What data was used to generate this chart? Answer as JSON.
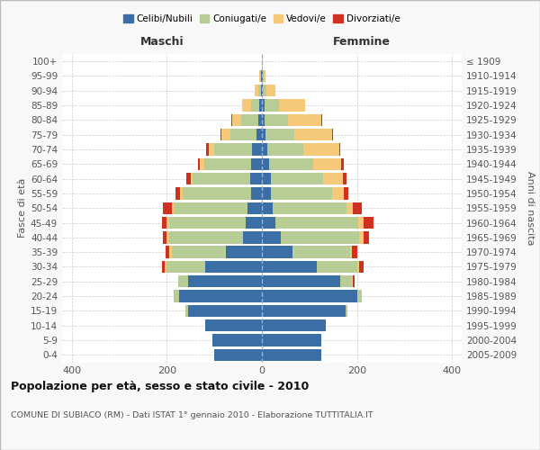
{
  "age_groups": [
    "0-4",
    "5-9",
    "10-14",
    "15-19",
    "20-24",
    "25-29",
    "30-34",
    "35-39",
    "40-44",
    "45-49",
    "50-54",
    "55-59",
    "60-64",
    "65-69",
    "70-74",
    "75-79",
    "80-84",
    "85-89",
    "90-94",
    "95-99",
    "100+"
  ],
  "birth_years": [
    "2005-2009",
    "2000-2004",
    "1995-1999",
    "1990-1994",
    "1985-1989",
    "1980-1984",
    "1975-1979",
    "1970-1974",
    "1965-1969",
    "1960-1964",
    "1955-1959",
    "1950-1954",
    "1945-1949",
    "1940-1944",
    "1935-1939",
    "1930-1934",
    "1925-1929",
    "1920-1924",
    "1915-1919",
    "1910-1914",
    "≤ 1909"
  ],
  "male": {
    "celibi": [
      100,
      105,
      120,
      155,
      175,
      155,
      120,
      75,
      40,
      35,
      30,
      22,
      25,
      22,
      20,
      12,
      8,
      5,
      2,
      1,
      0
    ],
    "coniugati": [
      0,
      0,
      0,
      5,
      10,
      20,
      80,
      115,
      155,
      160,
      155,
      145,
      120,
      100,
      80,
      55,
      35,
      18,
      5,
      2,
      0
    ],
    "vedovi": [
      0,
      0,
      0,
      0,
      0,
      0,
      5,
      5,
      5,
      5,
      5,
      5,
      5,
      8,
      12,
      18,
      20,
      18,
      8,
      2,
      0
    ],
    "divorziati": [
      0,
      0,
      0,
      0,
      0,
      0,
      5,
      8,
      8,
      10,
      18,
      10,
      8,
      5,
      5,
      2,
      2,
      0,
      0,
      0,
      0
    ]
  },
  "female": {
    "nubili": [
      125,
      125,
      135,
      175,
      200,
      165,
      115,
      65,
      40,
      28,
      22,
      18,
      18,
      15,
      12,
      8,
      5,
      5,
      2,
      1,
      0
    ],
    "coniugate": [
      0,
      0,
      0,
      5,
      10,
      25,
      85,
      120,
      165,
      175,
      155,
      130,
      110,
      92,
      75,
      60,
      50,
      30,
      8,
      2,
      0
    ],
    "vedove": [
      0,
      0,
      0,
      0,
      0,
      2,
      5,
      5,
      8,
      10,
      15,
      25,
      42,
      60,
      75,
      80,
      70,
      55,
      18,
      5,
      2
    ],
    "divorziate": [
      0,
      0,
      0,
      0,
      0,
      2,
      8,
      10,
      12,
      22,
      18,
      8,
      8,
      5,
      2,
      2,
      2,
      0,
      0,
      0,
      0
    ]
  },
  "colors": {
    "celibi": "#3A6EA5",
    "coniugati": "#B8CC96",
    "vedovi": "#F5C87A",
    "divorziati": "#D03020"
  },
  "title": "Popolazione per età, sesso e stato civile - 2010",
  "subtitle": "COMUNE DI SUBIACO (RM) - Dati ISTAT 1° gennaio 2010 - Elaborazione TUTTITALIA.IT",
  "xlabel_left": "Maschi",
  "xlabel_right": "Femmine",
  "ylabel_left": "Fasce di età",
  "ylabel_right": "Anni di nascita",
  "xlim": 420,
  "background_color": "#f8f8f8",
  "bar_bg_color": "#ffffff",
  "grid_color": "#cccccc",
  "legend_labels": [
    "Celibi/Nubili",
    "Coniugati/e",
    "Vedovi/e",
    "Divorziati/e"
  ]
}
